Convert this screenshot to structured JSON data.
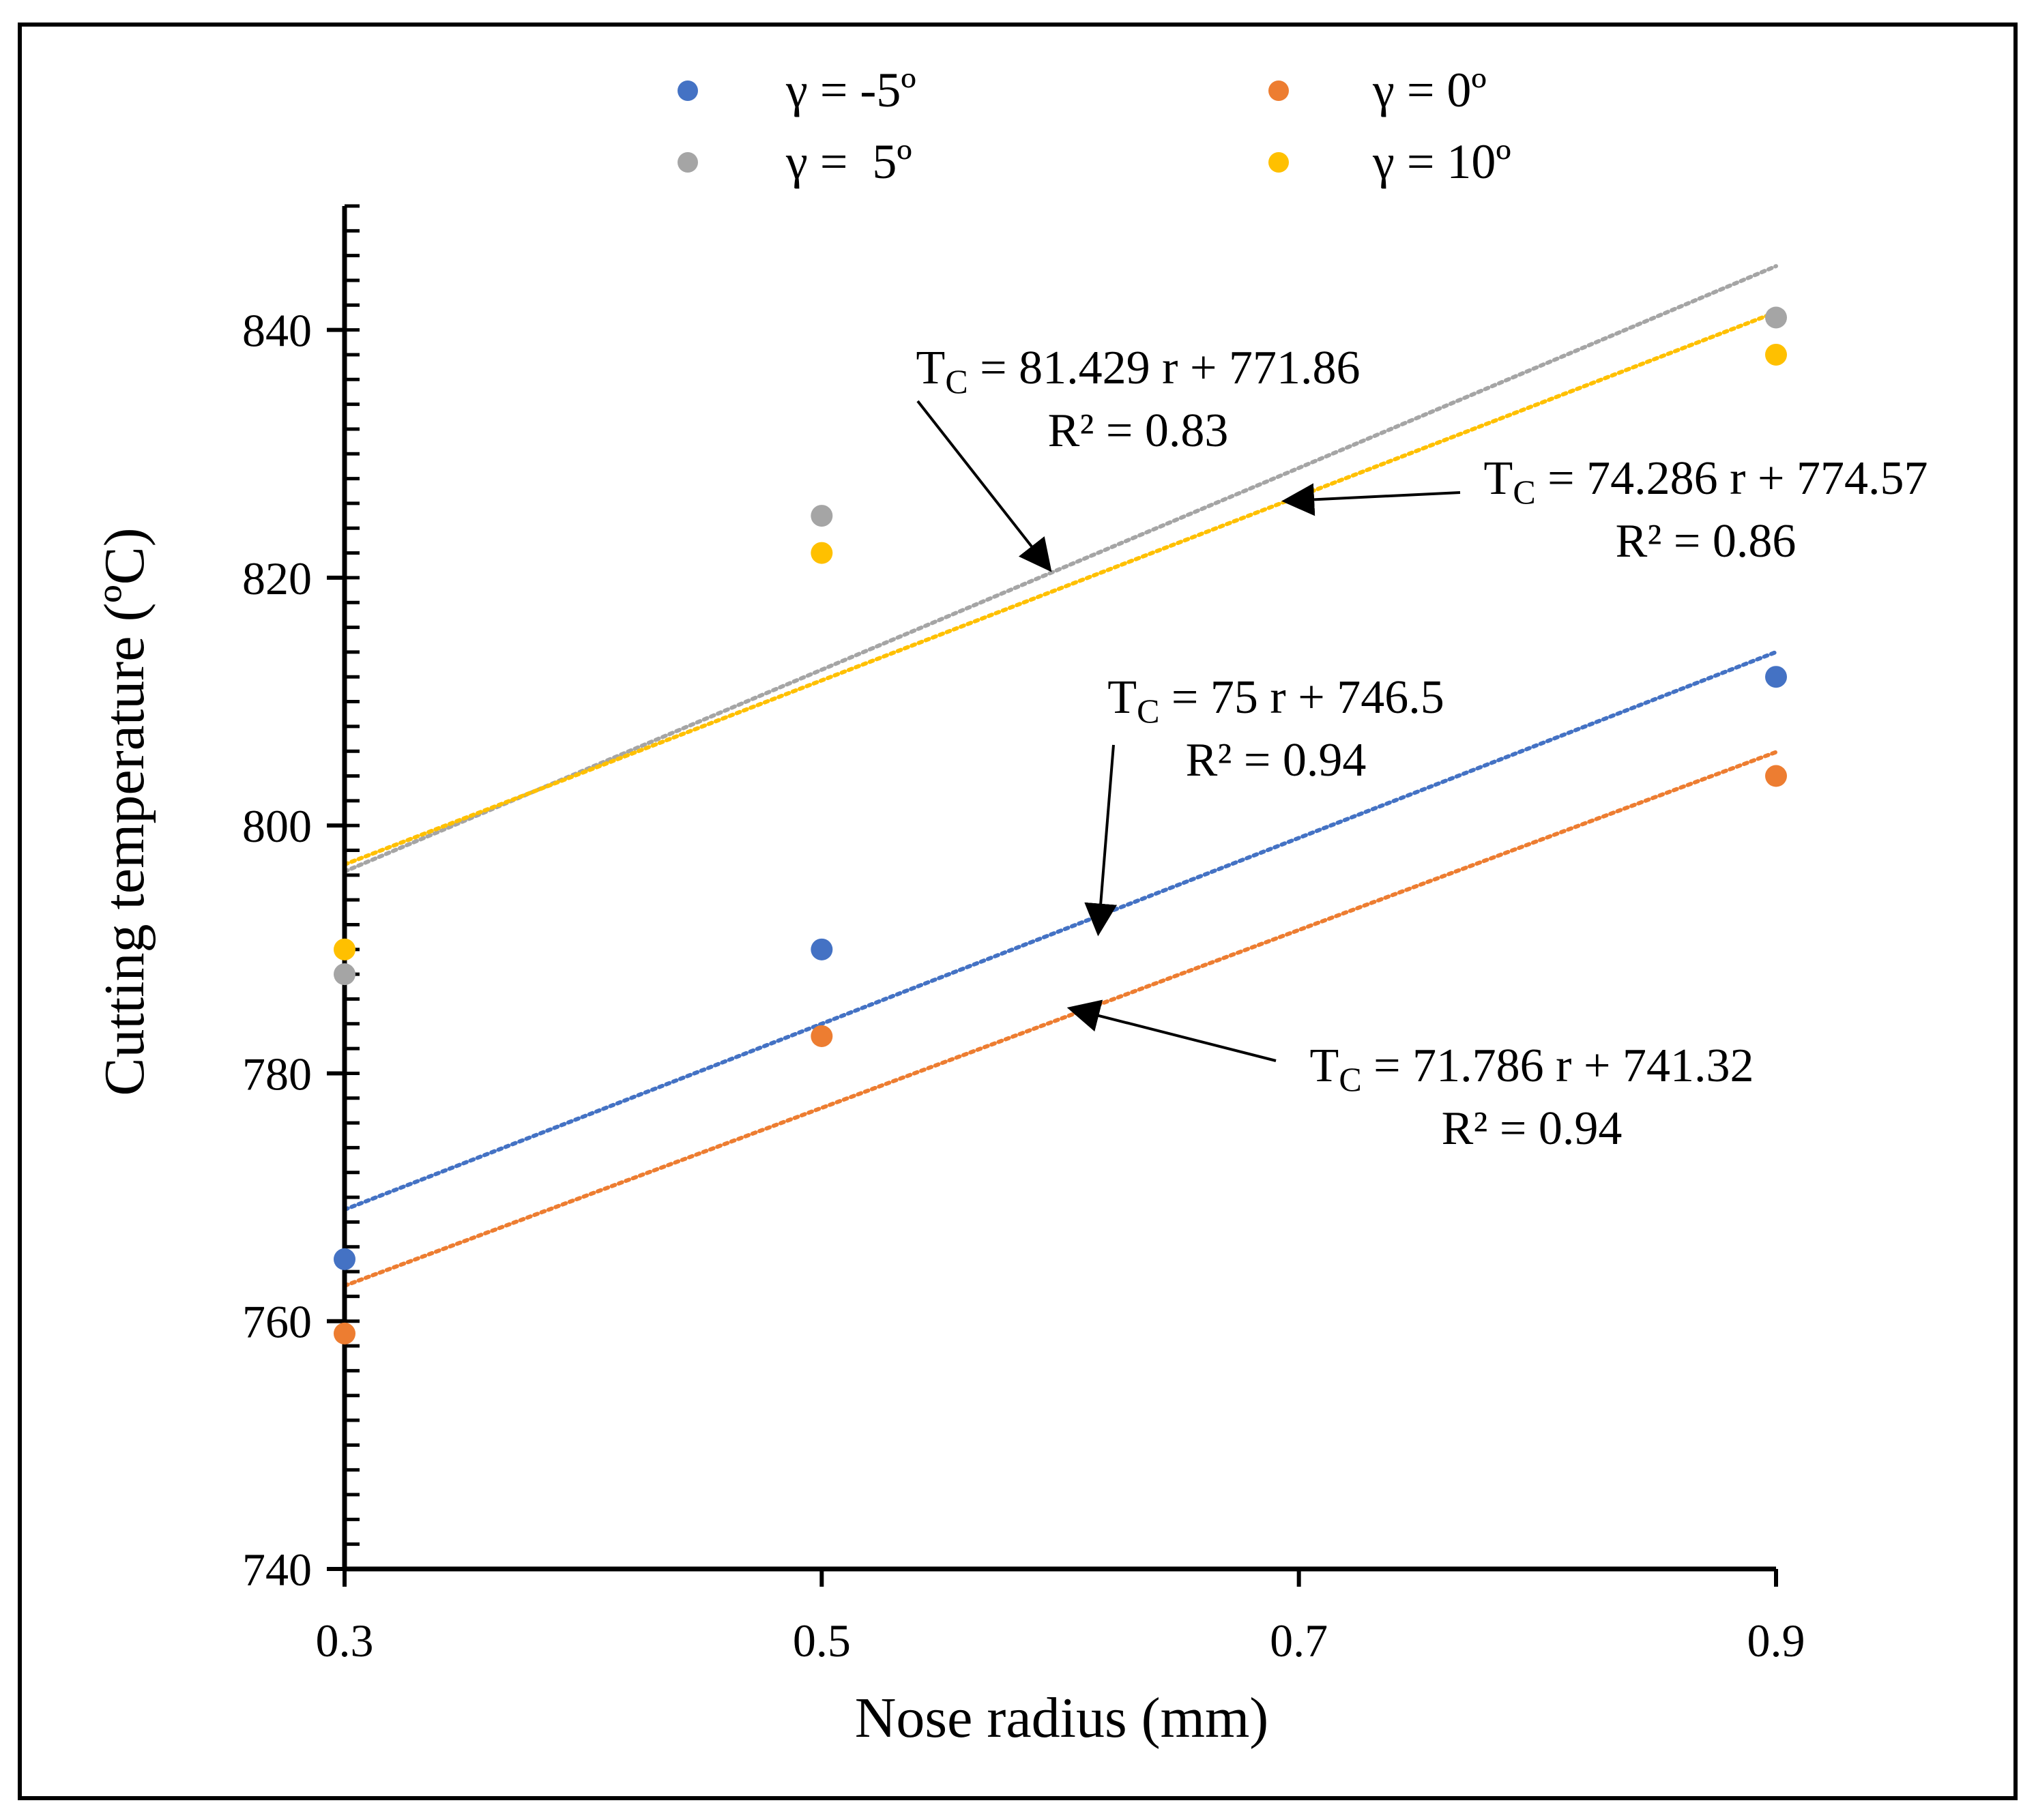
{
  "chart_data": {
    "type": "scatter",
    "xlabel": "Nose radius (mm)",
    "ylabel": "Cutting temperature (ºC)",
    "xlim": [
      0.3,
      0.9
    ],
    "ylim": [
      740,
      850
    ],
    "xticks": [
      0.3,
      0.5,
      0.7,
      0.9
    ],
    "xtick_labels": [
      "0.3",
      "0.5",
      "0.7",
      "0.9"
    ],
    "yticks": [
      740,
      760,
      780,
      800,
      820,
      840
    ],
    "ytick_labels": [
      "740",
      "760",
      "780",
      "800",
      "820",
      "840"
    ],
    "ytick_minor_step": 2,
    "grid": false,
    "legend_position": "top",
    "series": [
      {
        "name": "γ = -5º",
        "color": "#4472C4",
        "x": [
          0.3,
          0.5,
          0.9
        ],
        "y": [
          765,
          790,
          812
        ],
        "trend": {
          "slope": 75,
          "intercept": 746.5
        }
      },
      {
        "name": "γ = 0º",
        "color": "#ED7D31",
        "x": [
          0.3,
          0.5,
          0.9
        ],
        "y": [
          759,
          783,
          804
        ],
        "trend": {
          "slope": 71.786,
          "intercept": 741.32
        }
      },
      {
        "name": "γ =  5º",
        "color": "#A5A5A5",
        "x": [
          0.3,
          0.5,
          0.9
        ],
        "y": [
          788,
          825,
          841
        ],
        "trend": {
          "slope": 81.429,
          "intercept": 771.86
        }
      },
      {
        "name": "γ = 10º",
        "color": "#FFC000",
        "x": [
          0.3,
          0.5,
          0.9
        ],
        "y": [
          790,
          822,
          838
        ],
        "trend": {
          "slope": 74.286,
          "intercept": 774.57
        }
      }
    ],
    "annotations": [
      {
        "series": "γ =  5º",
        "eq_subscript": "C",
        "eq_rest": " = 81.429 r + 771.86",
        "r2": "R² = 0.83",
        "arrow_to": {
          "x": 0.595,
          "y": 820.8
        }
      },
      {
        "series": "γ = 10º",
        "eq_subscript": "C",
        "eq_rest": " = 74.286 r + 774.57",
        "r2": "R² = 0.86",
        "arrow_to": {
          "x": 0.695,
          "y": 826.2
        }
      },
      {
        "series": "γ = -5º",
        "eq_subscript": "C",
        "eq_rest": " = 75 r + 746.5",
        "r2": "R² = 0.94",
        "arrow_to": {
          "x": 0.616,
          "y": 791.5
        }
      },
      {
        "series": "γ = 0º",
        "eq_subscript": "C",
        "eq_rest": " = 71.786 r + 741.32",
        "r2": "R² = 0.94",
        "arrow_to": {
          "x": 0.605,
          "y": 785.2
        }
      }
    ]
  }
}
